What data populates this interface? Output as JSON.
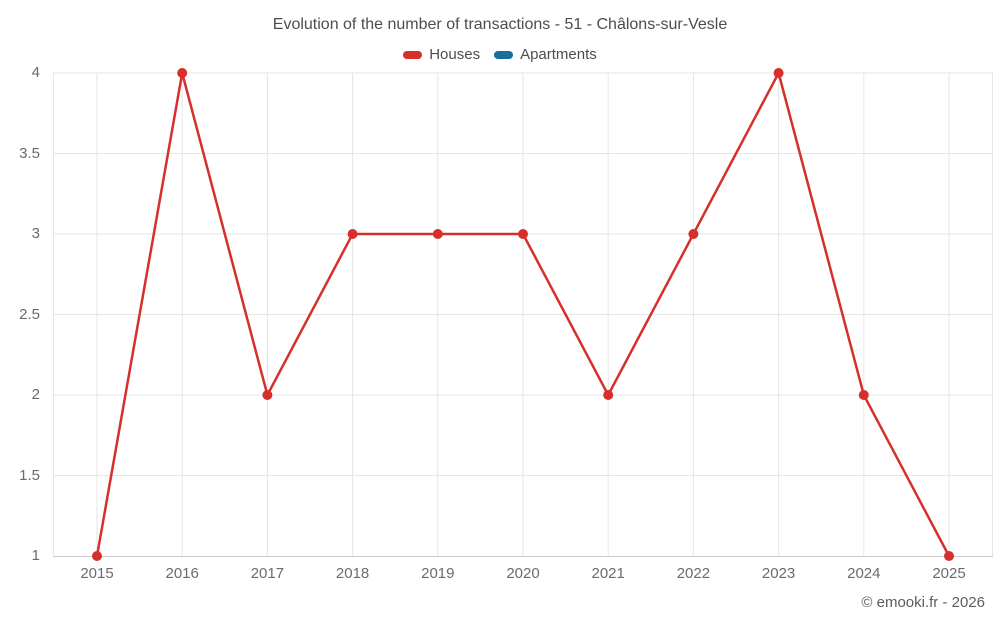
{
  "title": "Evolution of the number of transactions - 51 - Châlons-sur-Vesle",
  "legend": [
    {
      "label": "Houses",
      "color": "#d5302b"
    },
    {
      "label": "Apartments",
      "color": "#1c6d9c"
    }
  ],
  "watermark": "© emooki.fr - 2026",
  "colors": {
    "houses": "#d5302b",
    "apartments": "#1c6d9c",
    "grid": "#e6e6e6",
    "axis_line": "#cccccc",
    "tick_text": "#6b6b6b",
    "title_text": "#4d4d4d"
  },
  "chart_data": {
    "type": "line",
    "title": "Evolution of the number of transactions - 51 - Châlons-sur-Vesle",
    "x": [
      2015,
      2016,
      2017,
      2018,
      2019,
      2020,
      2021,
      2022,
      2023,
      2024,
      2025
    ],
    "series": [
      {
        "name": "Houses",
        "color": "#d5302b",
        "values": [
          1,
          4,
          2,
          3,
          3,
          3,
          2,
          3,
          4,
          2,
          1
        ]
      },
      {
        "name": "Apartments",
        "color": "#1c6d9c",
        "values": []
      }
    ],
    "xlabel": "",
    "ylabel": "",
    "ylim": [
      1,
      4
    ],
    "yticks": [
      1,
      1.5,
      2,
      2.5,
      3,
      3.5,
      4
    ],
    "ytick_labels": [
      "1",
      "1.5",
      "2",
      "2.5",
      "3",
      "3.5",
      "4"
    ],
    "grid": true,
    "legend_position": "top",
    "marker": "circle",
    "annotation": "© emooki.fr - 2026"
  }
}
